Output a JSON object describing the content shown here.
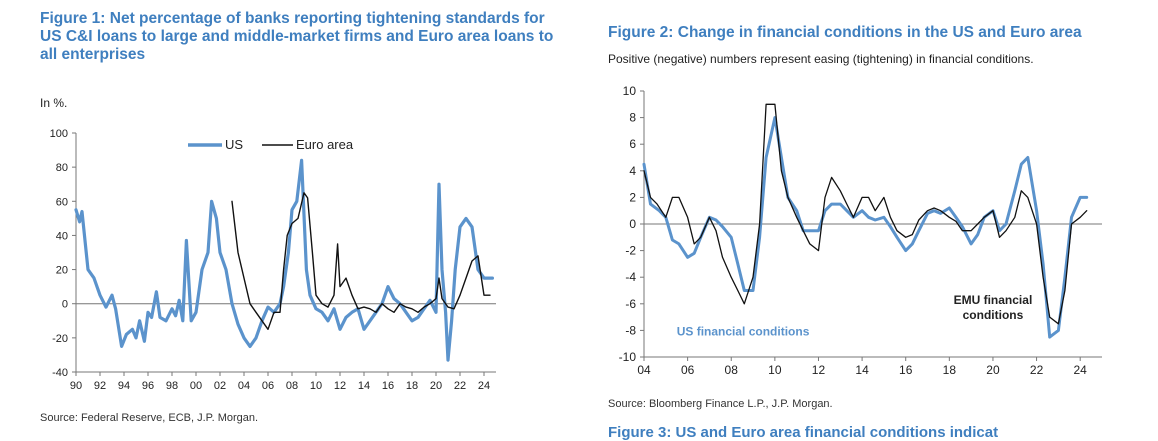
{
  "figure1": {
    "title_lines": [
      "Figure 1: Net percentage of banks reporting tightening standards for",
      "US C&I loans to large and middle-market firms and Euro area loans to",
      "all enterprises"
    ],
    "subtitle": "In %.",
    "source": "Source: Federal Reserve, ECB, J.P. Morgan."
  },
  "figure2": {
    "title": "Figure 2: Change in financial conditions in the US and Euro area",
    "subtitle": "Positive (negative) numbers represent easing (tightening) in financial conditions.",
    "source": "Source: Bloomberg Finance L.P., J.P. Morgan."
  },
  "next_figure_partial": "Figure 3: US and Euro area financial conditions indicat",
  "colors": {
    "us": "#5b93cc",
    "euro": "#111111",
    "title": "#3f7fbf"
  },
  "chart_data": [
    {
      "type": "line",
      "xlim": [
        1990,
        2025
      ],
      "ylim": [
        -40,
        100
      ],
      "yticks": [
        -40,
        -20,
        0,
        20,
        40,
        60,
        80,
        100
      ],
      "xtick_values": [
        1990,
        1992,
        1994,
        1996,
        1998,
        2000,
        2002,
        2004,
        2006,
        2008,
        2010,
        2012,
        2014,
        2016,
        2018,
        2020,
        2022,
        2024
      ],
      "xtick_labels": [
        "90",
        "92",
        "94",
        "96",
        "98",
        "00",
        "02",
        "04",
        "06",
        "08",
        "10",
        "12",
        "14",
        "16",
        "18",
        "20",
        "22",
        "24"
      ],
      "legend": {
        "position": "top-center"
      },
      "series": [
        {
          "name": "US",
          "color": "#5b93cc",
          "x": [
            1990.0,
            1990.3,
            1990.5,
            1991.0,
            1991.5,
            1992.0,
            1992.5,
            1993.0,
            1993.3,
            1993.8,
            1994.2,
            1994.7,
            1995.0,
            1995.3,
            1995.7,
            1996.0,
            1996.3,
            1996.7,
            1997.0,
            1997.5,
            1998.0,
            1998.3,
            1998.6,
            1998.9,
            1999.2,
            1999.6,
            2000.0,
            2000.5,
            2001.0,
            2001.3,
            2001.7,
            2002.0,
            2002.5,
            2003.0,
            2003.5,
            2004.0,
            2004.5,
            2005.0,
            2005.5,
            2006.0,
            2006.5,
            2007.0,
            2007.3,
            2007.7,
            2008.0,
            2008.4,
            2008.8,
            2009.2,
            2009.5,
            2010.0,
            2010.5,
            2011.0,
            2011.5,
            2012.0,
            2012.5,
            2013.0,
            2013.5,
            2014.0,
            2014.5,
            2015.0,
            2015.5,
            2016.0,
            2016.5,
            2017.0,
            2017.5,
            2018.0,
            2018.5,
            2019.0,
            2019.5,
            2020.0,
            2020.25,
            2020.5,
            2020.8,
            2021.0,
            2021.3,
            2021.6,
            2022.0,
            2022.5,
            2023.0,
            2023.5,
            2024.0,
            2024.4,
            2024.7
          ],
          "y": [
            55,
            48,
            54,
            20,
            15,
            5,
            -2,
            5,
            -3,
            -25,
            -18,
            -15,
            -20,
            -10,
            -22,
            -5,
            -8,
            7,
            -8,
            -10,
            -3,
            -7,
            2,
            -10,
            37,
            -10,
            -5,
            20,
            30,
            60,
            50,
            30,
            20,
            0,
            -12,
            -20,
            -25,
            -20,
            -10,
            -2,
            -5,
            0,
            10,
            30,
            55,
            60,
            84,
            20,
            5,
            -3,
            -5,
            -10,
            -3,
            -15,
            -8,
            -5,
            -3,
            -15,
            -10,
            -5,
            0,
            10,
            3,
            0,
            -5,
            -10,
            -8,
            -3,
            2,
            -5,
            70,
            20,
            -5,
            -33,
            -10,
            20,
            45,
            50,
            45,
            20,
            15,
            15,
            15
          ]
        },
        {
          "name": "Euro area",
          "color": "#111111",
          "x": [
            2003.0,
            2003.5,
            2004.0,
            2004.5,
            2005.0,
            2005.5,
            2006.0,
            2006.5,
            2007.0,
            2007.3,
            2007.6,
            2008.0,
            2008.5,
            2009.0,
            2009.3,
            2009.7,
            2010.0,
            2010.5,
            2011.0,
            2011.5,
            2011.8,
            2012.0,
            2012.5,
            2013.0,
            2013.5,
            2014.0,
            2014.5,
            2015.0,
            2015.5,
            2016.0,
            2016.5,
            2017.0,
            2017.5,
            2018.0,
            2018.5,
            2019.0,
            2019.5,
            2020.0,
            2020.25,
            2020.5,
            2021.0,
            2021.5,
            2022.0,
            2022.5,
            2023.0,
            2023.5,
            2024.0,
            2024.5
          ],
          "y": [
            60,
            30,
            15,
            0,
            -5,
            -10,
            -15,
            -5,
            -5,
            20,
            40,
            47,
            50,
            65,
            62,
            30,
            5,
            0,
            -2,
            5,
            35,
            10,
            15,
            5,
            -3,
            -2,
            -3,
            -5,
            0,
            -3,
            -5,
            0,
            -2,
            -3,
            -5,
            -2,
            0,
            3,
            15,
            3,
            -2,
            -3,
            5,
            15,
            25,
            28,
            5,
            5
          ]
        }
      ]
    },
    {
      "type": "line",
      "xlim": [
        2004,
        2025
      ],
      "ylim": [
        -10,
        10
      ],
      "yticks": [
        -10,
        -8,
        -6,
        -4,
        -2,
        0,
        2,
        4,
        6,
        8,
        10
      ],
      "xtick_values": [
        2004,
        2006,
        2008,
        2010,
        2012,
        2014,
        2016,
        2018,
        2020,
        2022,
        2024
      ],
      "xtick_labels": [
        "04",
        "06",
        "08",
        "10",
        "12",
        "14",
        "16",
        "18",
        "20",
        "22",
        "24"
      ],
      "annotations": [
        {
          "text_lines": [
            "EMU financial",
            "conditions"
          ],
          "x": 2020.0,
          "y": -6.0,
          "color": "#222222"
        },
        {
          "text_lines": [
            "US financial conditions"
          ],
          "x": 2005.5,
          "y": -8.4,
          "color": "#5b93cc"
        }
      ],
      "series": [
        {
          "name": "US financial conditions",
          "color": "#5b93cc",
          "x": [
            2004.0,
            2004.3,
            2004.7,
            2005.0,
            2005.3,
            2005.6,
            2006.0,
            2006.3,
            2006.6,
            2007.0,
            2007.3,
            2007.6,
            2008.0,
            2008.3,
            2008.6,
            2009.0,
            2009.3,
            2009.6,
            2010.0,
            2010.3,
            2010.6,
            2011.0,
            2011.3,
            2011.6,
            2012.0,
            2012.3,
            2012.6,
            2013.0,
            2013.3,
            2013.6,
            2014.0,
            2014.3,
            2014.6,
            2015.0,
            2015.3,
            2015.6,
            2016.0,
            2016.3,
            2016.6,
            2017.0,
            2017.3,
            2017.6,
            2018.0,
            2018.3,
            2018.6,
            2019.0,
            2019.3,
            2019.6,
            2020.0,
            2020.3,
            2020.6,
            2021.0,
            2021.3,
            2021.6,
            2022.0,
            2022.3,
            2022.6,
            2023.0,
            2023.3,
            2023.6,
            2024.0,
            2024.3
          ],
          "y": [
            4.5,
            1.5,
            1.0,
            0.5,
            -1.2,
            -1.5,
            -2.5,
            -2.2,
            -1.0,
            0.5,
            0.3,
            -0.2,
            -1.0,
            -3.0,
            -5.0,
            -5.0,
            -1.0,
            5.0,
            8.0,
            5.0,
            2.0,
            1.0,
            -0.5,
            -0.5,
            -0.5,
            1.0,
            1.5,
            1.5,
            1.0,
            0.5,
            1.0,
            0.5,
            0.3,
            0.5,
            -0.2,
            -1.0,
            -2.0,
            -1.5,
            -0.5,
            0.8,
            1.0,
            0.8,
            1.2,
            0.5,
            -0.2,
            -1.5,
            -0.8,
            0.5,
            1.0,
            -0.5,
            0.0,
            2.5,
            4.5,
            5.0,
            1.0,
            -3.0,
            -8.5,
            -8.0,
            -4.0,
            0.5,
            2.0,
            2.0
          ]
        },
        {
          "name": "EMU financial conditions",
          "color": "#111111",
          "x": [
            2004.0,
            2004.3,
            2004.6,
            2005.0,
            2005.3,
            2005.6,
            2006.0,
            2006.3,
            2006.6,
            2007.0,
            2007.3,
            2007.6,
            2008.0,
            2008.3,
            2008.6,
            2009.0,
            2009.3,
            2009.6,
            2010.0,
            2010.3,
            2010.6,
            2011.0,
            2011.3,
            2011.6,
            2012.0,
            2012.3,
            2012.6,
            2013.0,
            2013.3,
            2013.6,
            2014.0,
            2014.3,
            2014.6,
            2015.0,
            2015.3,
            2015.6,
            2016.0,
            2016.3,
            2016.6,
            2017.0,
            2017.3,
            2017.6,
            2018.0,
            2018.3,
            2018.6,
            2019.0,
            2019.3,
            2019.6,
            2020.0,
            2020.3,
            2020.6,
            2021.0,
            2021.3,
            2021.6,
            2022.0,
            2022.3,
            2022.6,
            2023.0,
            2023.3,
            2023.6,
            2024.0,
            2024.3
          ],
          "y": [
            4.0,
            2.0,
            1.5,
            0.5,
            2.0,
            2.0,
            0.5,
            -1.5,
            -1.0,
            0.5,
            -0.5,
            -2.5,
            -4.0,
            -5.0,
            -6.0,
            -4.0,
            0.0,
            9.0,
            9.0,
            4.0,
            2.0,
            0.5,
            -0.5,
            -1.5,
            -2.0,
            2.0,
            3.5,
            2.5,
            1.5,
            0.5,
            2.0,
            2.0,
            1.0,
            2.0,
            0.5,
            -0.5,
            -1.0,
            -0.8,
            0.3,
            1.0,
            1.2,
            1.0,
            0.5,
            0.2,
            -0.5,
            -0.5,
            0.0,
            0.5,
            1.0,
            -1.0,
            -0.5,
            0.5,
            2.5,
            2.0,
            0.0,
            -4.0,
            -7.0,
            -7.5,
            -5.0,
            0.0,
            0.5,
            1.0
          ]
        }
      ]
    }
  ]
}
